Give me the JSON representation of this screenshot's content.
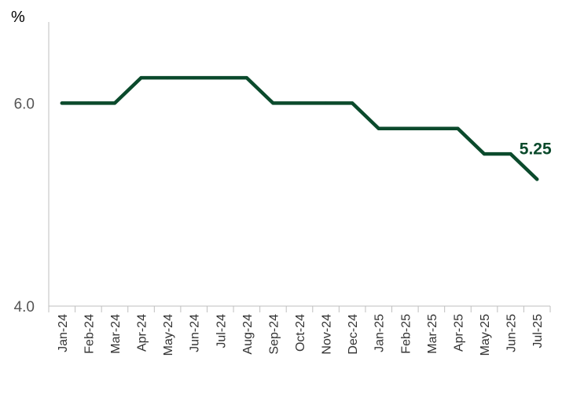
{
  "chart_data": {
    "type": "line",
    "title": "",
    "unit_label": "%",
    "xlabel": "",
    "ylabel": "",
    "ylim": [
      4.0,
      6.8
    ],
    "y_ticks": [
      {
        "value": 4.0,
        "label": "4.0"
      },
      {
        "value": 6.0,
        "label": "6.0"
      }
    ],
    "categories": [
      "Jan-24",
      "Feb-24",
      "Mar-24",
      "Apr-24",
      "May-24",
      "Jun-24",
      "Jul-24",
      "Aug-24",
      "Sep-24",
      "Oct-24",
      "Nov-24",
      "Dec-24",
      "Jan-25",
      "Feb-25",
      "Mar-25",
      "Apr-25",
      "May-25",
      "Jun-25",
      "Jul-25"
    ],
    "series": [
      {
        "values": [
          6.0,
          6.0,
          6.0,
          6.25,
          6.25,
          6.25,
          6.25,
          6.25,
          6.0,
          6.0,
          6.0,
          6.0,
          5.75,
          5.75,
          5.75,
          5.75,
          5.5,
          5.5,
          5.25
        ],
        "color": "#0b4a2c"
      }
    ],
    "end_label": "5.25",
    "grid": false,
    "legend": "none"
  }
}
